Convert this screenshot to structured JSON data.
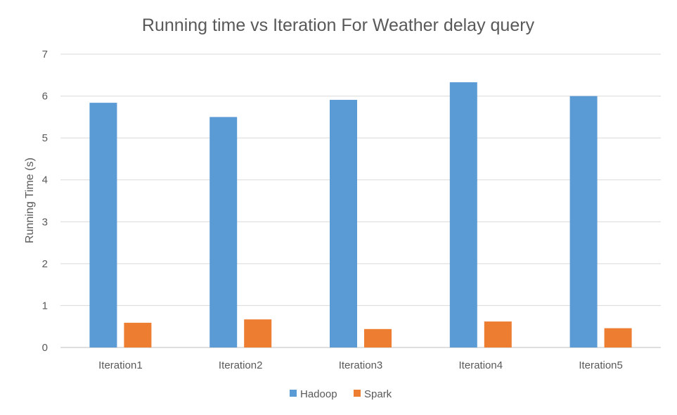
{
  "chart_data": {
    "type": "bar",
    "title": "Running time vs Iteration For Weather delay query",
    "xlabel": "",
    "ylabel": "Running Time (s)",
    "ylim": [
      0,
      7
    ],
    "yticks": [
      0,
      1,
      2,
      3,
      4,
      5,
      6,
      7
    ],
    "grid": true,
    "legend_position": "bottom",
    "categories": [
      "Iteration1",
      "Iteration2",
      "Iteration3",
      "Iteration4",
      "Iteration5"
    ],
    "series": [
      {
        "name": "Hadoop",
        "color": "#5b9bd5",
        "values": [
          5.84,
          5.5,
          5.91,
          6.33,
          6.0
        ]
      },
      {
        "name": "Spark",
        "color": "#ed7d31",
        "values": [
          0.59,
          0.67,
          0.44,
          0.62,
          0.46
        ]
      }
    ]
  }
}
